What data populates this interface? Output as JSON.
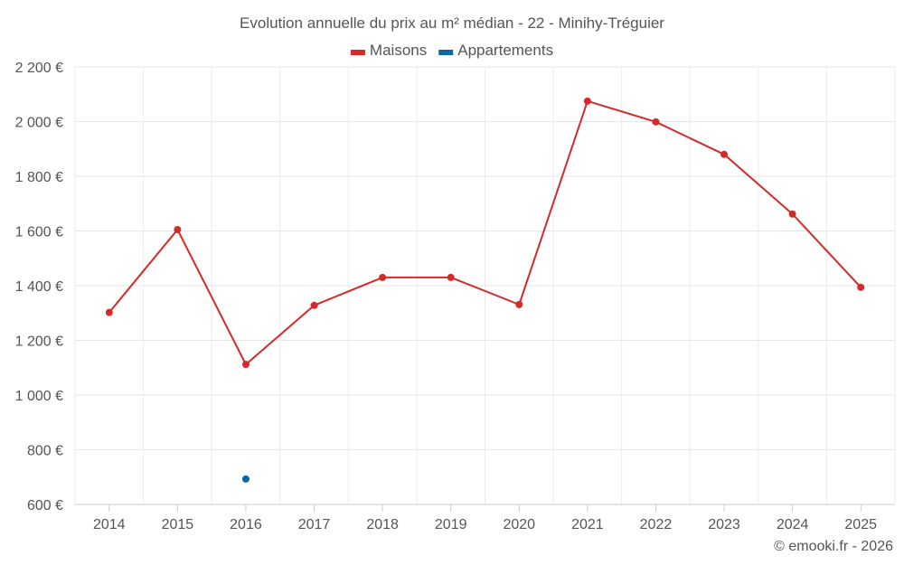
{
  "chart_data": {
    "type": "line",
    "title": "Evolution annuelle du prix au m² médian - 22 - Minihy-Tréguier",
    "categories": [
      "2014",
      "2015",
      "2016",
      "2017",
      "2018",
      "2019",
      "2020",
      "2021",
      "2022",
      "2023",
      "2024",
      "2025"
    ],
    "series": [
      {
        "name": "Maisons",
        "color": "#d42a2a",
        "values": [
          1302,
          1605,
          1112,
          1328,
          1430,
          1430,
          1331,
          2075,
          1999,
          1880,
          1662,
          1394
        ]
      },
      {
        "name": "Appartements",
        "color": "#0a6aa0",
        "values": [
          null,
          null,
          693,
          null,
          null,
          null,
          null,
          null,
          null,
          null,
          null,
          null
        ]
      }
    ],
    "ylim": [
      600,
      2200
    ],
    "yticks": [
      600,
      800,
      1000,
      1200,
      1400,
      1600,
      1800,
      2000,
      2200
    ],
    "ytick_labels": [
      "600 €",
      "800 €",
      "1 000 €",
      "1 200 €",
      "1 400 €",
      "1 600 €",
      "1 800 €",
      "2 000 €",
      "2 200 €"
    ],
    "xlabel": "",
    "ylabel": "",
    "grid": true,
    "legend_position": "top-center"
  },
  "credit": "© emooki.fr - 2026"
}
